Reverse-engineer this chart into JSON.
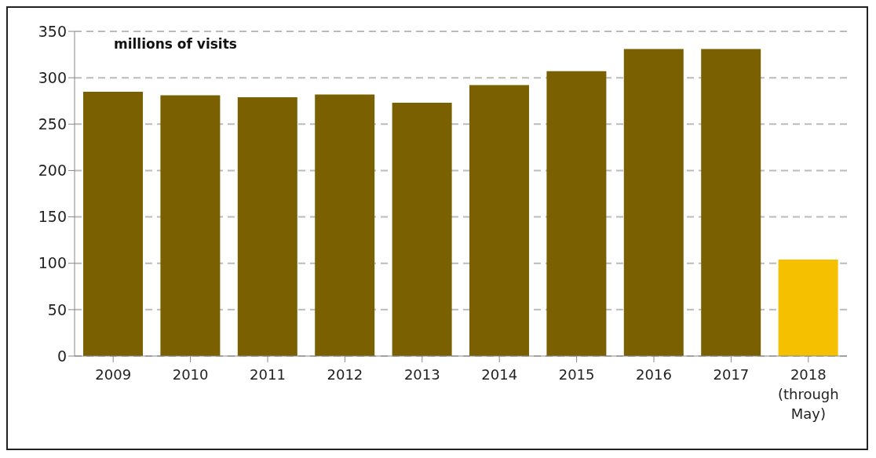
{
  "chart_data": {
    "type": "bar",
    "annotations": [
      "millions of visits"
    ],
    "categories": [
      "2009",
      "2010",
      "2011",
      "2012",
      "2013",
      "2014",
      "2015",
      "2016",
      "2017",
      "2018\n(through\nMay)"
    ],
    "values": [
      285,
      281,
      279,
      282,
      273,
      292,
      307,
      331,
      331,
      104
    ],
    "colors": [
      "#7a6000",
      "#7a6000",
      "#7a6000",
      "#7a6000",
      "#7a6000",
      "#7a6000",
      "#7a6000",
      "#7a6000",
      "#7a6000",
      "#f5c000"
    ],
    "ylim": [
      0,
      350
    ],
    "yticks": [
      0,
      50,
      100,
      150,
      200,
      250,
      300,
      350
    ],
    "grid": "y"
  }
}
